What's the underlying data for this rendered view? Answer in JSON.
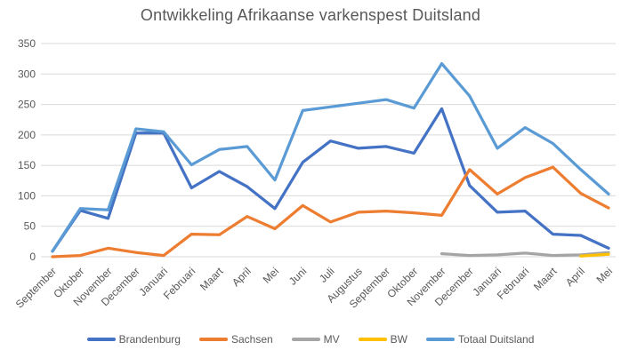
{
  "title": "Ontwikkeling Afrikaanse varkenspest Duitsland",
  "colors": {
    "background": "#FFFFFF",
    "title_text": "#595959",
    "axis_text": "#595959",
    "gridline": "#D9D9D9"
  },
  "chart_data": {
    "type": "line",
    "title": "Ontwikkeling Afrikaanse varkenspest Duitsland",
    "xlabel": "",
    "ylabel": "",
    "ylim": [
      0,
      350
    ],
    "y_ticks": [
      0,
      50,
      100,
      150,
      200,
      250,
      300,
      350
    ],
    "grid": true,
    "legend_position": "bottom",
    "categories": [
      "September",
      "Oktober",
      "November",
      "December",
      "Januari",
      "Februari",
      "Maart",
      "April",
      "Mei",
      "Juni",
      "Juli",
      "Augustus",
      "September",
      "Oktober",
      "November",
      "December",
      "Januari",
      "Februari",
      "Maart",
      "April",
      "Mei"
    ],
    "series": [
      {
        "name": "Brandenburg",
        "color": "#4472C4",
        "values": [
          9,
          76,
          63,
          203,
          203,
          113,
          140,
          115,
          79,
          155,
          190,
          178,
          181,
          170,
          243,
          117,
          73,
          75,
          37,
          35,
          14
        ]
      },
      {
        "name": "Sachsen",
        "color": "#ED7D31",
        "values": [
          0,
          2,
          14,
          7,
          2,
          37,
          36,
          66,
          46,
          84,
          57,
          73,
          75,
          72,
          68,
          143,
          103,
          130,
          147,
          104,
          80
        ]
      },
      {
        "name": "MV",
        "color": "#A5A5A5",
        "values": [
          null,
          null,
          null,
          null,
          null,
          null,
          null,
          null,
          null,
          null,
          null,
          null,
          null,
          null,
          5,
          2,
          3,
          6,
          2,
          3,
          7
        ]
      },
      {
        "name": "BW",
        "color": "#FFC000",
        "values": [
          null,
          null,
          null,
          null,
          null,
          null,
          null,
          null,
          null,
          null,
          null,
          null,
          null,
          null,
          null,
          null,
          null,
          null,
          null,
          1,
          4
        ]
      },
      {
        "name": "Totaal Duitsland",
        "color": "#5B9BD5",
        "values": [
          9,
          79,
          77,
          210,
          205,
          151,
          176,
          181,
          126,
          240,
          246,
          252,
          258,
          244,
          317,
          264,
          178,
          212,
          186,
          143,
          103
        ]
      }
    ]
  }
}
